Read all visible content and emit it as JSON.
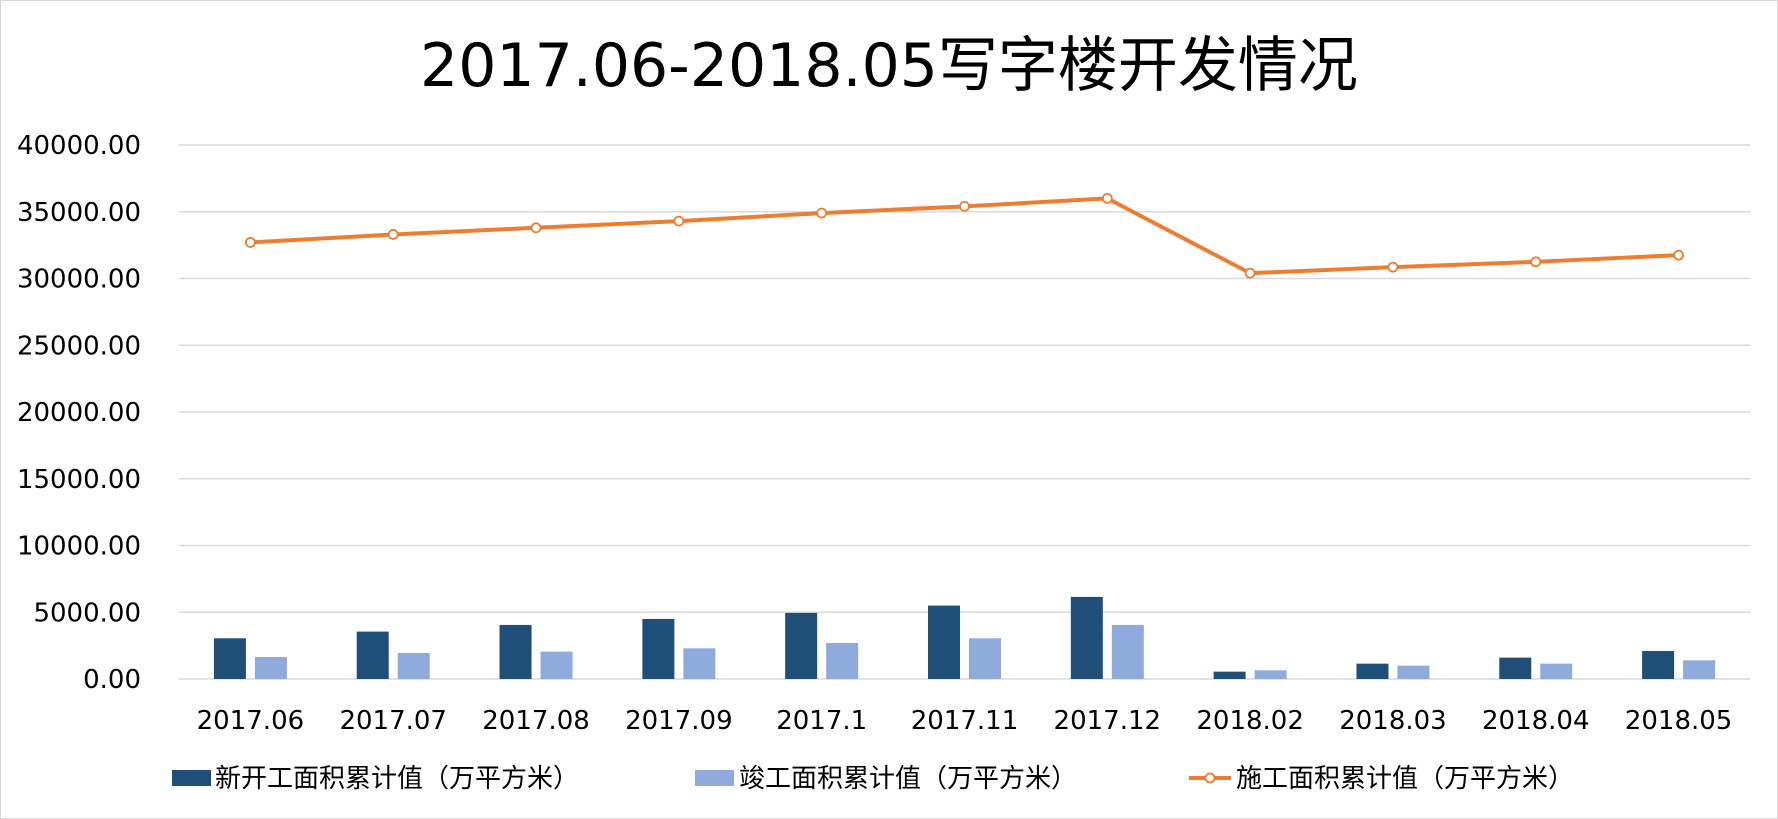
{
  "chart_data": {
    "type": "bar",
    "title": "2017.06-2018.05写字楼开发情况",
    "categories": [
      "2017.06",
      "2017.07",
      "2017.08",
      "2017.09",
      "2017.1",
      "2017.11",
      "2017.12",
      "2018.02",
      "2018.03",
      "2018.04",
      "2018.05"
    ],
    "y_ticks": [
      "0.00",
      "5000.00",
      "10000.00",
      "15000.00",
      "20000.00",
      "25000.00",
      "30000.00",
      "35000.00",
      "40000.00"
    ],
    "ylim": [
      0,
      40000
    ],
    "grid": true,
    "legend_position": "bottom",
    "series": [
      {
        "name": "新开工面积累计值（万平方米）",
        "type": "bar",
        "color": "#1F4E79",
        "values": [
          3050,
          3550,
          4050,
          4500,
          4950,
          5500,
          6150,
          550,
          1150,
          1600,
          2100
        ]
      },
      {
        "name": "竣工面积累计值（万平方米）",
        "type": "bar",
        "color": "#8FAADC",
        "values": [
          1650,
          1950,
          2050,
          2300,
          2700,
          3050,
          4050,
          650,
          1000,
          1150,
          1400
        ]
      },
      {
        "name": "施工面积累计值（万平方米）",
        "type": "line",
        "marker": "circle",
        "color": "#ED7D31",
        "values": [
          32700,
          33300,
          33800,
          34300,
          34900,
          35400,
          36000,
          30400,
          30850,
          31250,
          31750
        ]
      }
    ]
  }
}
